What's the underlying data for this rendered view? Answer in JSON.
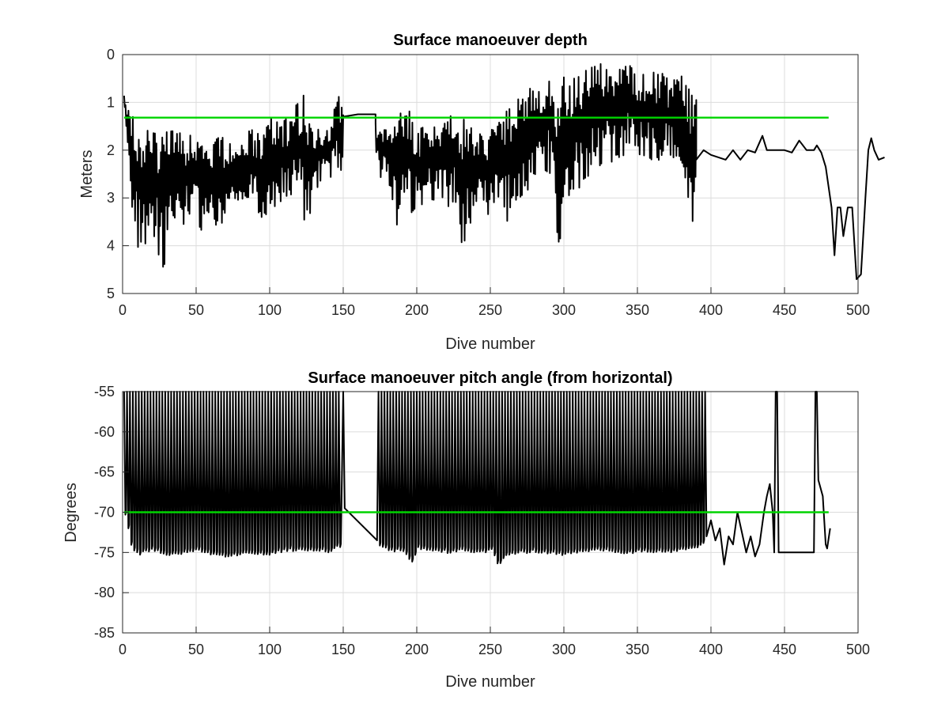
{
  "chart_data": [
    {
      "type": "line",
      "title": "Surface manoeuver depth",
      "xlabel": "Dive number",
      "ylabel": "Meters",
      "xlim": [
        0,
        500
      ],
      "ylim": [
        0,
        5
      ],
      "y_reversed": true,
      "grid": true,
      "xticks": [
        "0",
        "50",
        "100",
        "150",
        "200",
        "250",
        "300",
        "350",
        "400",
        "450",
        "500"
      ],
      "yticks": [
        "0",
        "1",
        "2",
        "3",
        "4",
        "5"
      ],
      "xtick_values": [
        0,
        50,
        100,
        150,
        200,
        250,
        300,
        350,
        400,
        450,
        500
      ],
      "ytick_values": [
        0,
        1,
        2,
        3,
        4,
        5
      ],
      "series": [
        {
          "color": "#000000",
          "segments": [
            {
              "x_start": 1,
              "x_end": 150,
              "envelope_high": [
                [
                  1,
                  0.8
                ],
                [
                  10,
                  1.3
                ],
                [
                  20,
                  1.4
                ],
                [
                  40,
                  1.5
                ],
                [
                  60,
                  1.6
                ],
                [
                  80,
                  1.6
                ],
                [
                  95,
                  1.4
                ],
                [
                  98,
                  0.5
                ],
                [
                  102,
                  1.2
                ],
                [
                  115,
                  1.2
                ],
                [
                  122,
                  0.5
                ],
                [
                  130,
                  1.3
                ],
                [
                  140,
                  1.4
                ],
                [
                  147,
                  0.8
                ],
                [
                  150,
                  0.9
                ]
              ],
              "envelope_low": [
                [
                  1,
                  1.0
                ],
                [
                  5,
                  3.0
                ],
                [
                  8,
                  3.8
                ],
                [
                  12,
                  4.3
                ],
                [
                  20,
                  3.8
                ],
                [
                  28,
                  4.5
                ],
                [
                  35,
                  3.5
                ],
                [
                  45,
                  3.6
                ],
                [
                  55,
                  3.7
                ],
                [
                  65,
                  3.6
                ],
                [
                  75,
                  3.5
                ],
                [
                  85,
                  3.0
                ],
                [
                  97,
                  3.7
                ],
                [
                  105,
                  3.3
                ],
                [
                  115,
                  3.0
                ],
                [
                  125,
                  3.7
                ],
                [
                  130,
                  3.1
                ],
                [
                  140,
                  2.6
                ],
                [
                  150,
                  2.4
                ]
              ]
            },
            {
              "x_start": 150,
              "x_end": 172,
              "line": [
                [
                  150,
                  1.3
                ],
                [
                  160,
                  1.25
                ],
                [
                  172,
                  1.25
                ]
              ]
            },
            {
              "x_start": 172,
              "x_end": 250,
              "envelope_high": [
                [
                  172,
                  1.3
                ],
                [
                  185,
                  1.4
                ],
                [
                  192,
                  0.8
                ],
                [
                  200,
                  1.5
                ],
                [
                  210,
                  1.2
                ],
                [
                  217,
                  1.3
                ],
                [
                  225,
                  0.9
                ],
                [
                  235,
                  1.1
                ],
                [
                  240,
                  1.4
                ],
                [
                  250,
                  1.5
                ]
              ],
              "envelope_low": [
                [
                  172,
                  2.4
                ],
                [
                  180,
                  2.8
                ],
                [
                  187,
                  3.7
                ],
                [
                  195,
                  3.4
                ],
                [
                  205,
                  3.2
                ],
                [
                  215,
                  3.0
                ],
                [
                  225,
                  3.3
                ],
                [
                  232,
                  4.1
                ],
                [
                  240,
                  3.5
                ],
                [
                  250,
                  3.5
                ]
              ]
            },
            {
              "x_start": 250,
              "x_end": 390,
              "envelope_high": [
                [
                  250,
                  1.5
                ],
                [
                  260,
                  1.0
                ],
                [
                  270,
                  0.8
                ],
                [
                  280,
                  0.5
                ],
                [
                  290,
                  0.3
                ],
                [
                  300,
                  0.3
                ],
                [
                  310,
                  0.2
                ],
                [
                  320,
                  0.1
                ],
                [
                  340,
                  0.0
                ],
                [
                  350,
                  0.2
                ],
                [
                  370,
                  0.3
                ],
                [
                  380,
                  0.3
                ],
                [
                  390,
                  0.8
                ]
              ],
              "envelope_low": [
                [
                  250,
                  3.0
                ],
                [
                  260,
                  3.6
                ],
                [
                  270,
                  3.0
                ],
                [
                  280,
                  2.7
                ],
                [
                  290,
                  2.5
                ],
                [
                  296,
                  4.2
                ],
                [
                  305,
                  3.2
                ],
                [
                  315,
                  2.6
                ],
                [
                  330,
                  2.4
                ],
                [
                  345,
                  2.1
                ],
                [
                  360,
                  2.2
                ],
                [
                  380,
                  2.5
                ],
                [
                  389,
                  3.7
                ]
              ]
            },
            {
              "x_start": 390,
              "x_end": 480,
              "line": [
                [
                  390,
                  2.2
                ],
                [
                  395,
                  2.0
                ],
                [
                  400,
                  2.1
                ],
                [
                  410,
                  2.2
                ],
                [
                  415,
                  2.0
                ],
                [
                  420,
                  2.2
                ],
                [
                  425,
                  2.0
                ],
                [
                  430,
                  2.05
                ],
                [
                  435,
                  1.7
                ],
                [
                  438,
                  2.0
                ],
                [
                  445,
                  2.0
                ],
                [
                  450,
                  2.0
                ],
                [
                  455,
                  2.05
                ],
                [
                  460,
                  1.8
                ],
                [
                  465,
                  2.0
                ],
                [
                  470,
                  2.0
                ],
                [
                  472,
                  1.9
                ],
                [
                  475,
                  2.05
                ],
                [
                  478,
                  2.35
                ],
                [
                  482,
                  3.2
                ],
                [
                  484,
                  4.2
                ],
                [
                  486,
                  3.2
                ],
                [
                  488,
                  3.2
                ],
                [
                  490,
                  3.8
                ],
                [
                  493,
                  3.2
                ],
                [
                  496,
                  3.2
                ],
                [
                  499,
                  4.7
                ],
                [
                  502,
                  4.6
                ],
                [
                  505,
                  3.0
                ],
                [
                  507,
                  2.0
                ],
                [
                  509,
                  1.75
                ],
                [
                  511,
                  2.0
                ],
                [
                  514,
                  2.2
                ],
                [
                  518,
                  2.15
                ]
              ]
            }
          ]
        },
        {
          "color": "#00d400",
          "points": [
            [
              1,
              1.32
            ],
            [
              480,
              1.32
            ]
          ]
        }
      ]
    },
    {
      "type": "line",
      "title": "Surface manoeuver pitch angle (from horizontal)",
      "xlabel": "Dive number",
      "ylabel": "Degrees",
      "xlim": [
        0,
        500
      ],
      "ylim": [
        -85,
        -55
      ],
      "grid": true,
      "xticks": [
        "0",
        "50",
        "100",
        "150",
        "200",
        "250",
        "300",
        "350",
        "400",
        "450",
        "500"
      ],
      "yticks": [
        "-55",
        "-60",
        "-65",
        "-70",
        "-75",
        "-80",
        "-85"
      ],
      "xtick_values": [
        0,
        50,
        100,
        150,
        200,
        250,
        300,
        350,
        400,
        450,
        500
      ],
      "ytick_values": [
        -55,
        -60,
        -65,
        -70,
        -75,
        -80,
        -85
      ],
      "series": [
        {
          "color": "#000000",
          "segments": [
            {
              "x_start": 1,
              "x_end": 148,
              "spikes_top": -55,
              "bottoms": [
                [
                  1,
                  -70
                ],
                [
                  5,
                  -74
                ],
                [
                  10,
                  -75
                ],
                [
                  20,
                  -74.5
                ],
                [
                  30,
                  -75
                ],
                [
                  40,
                  -74.8
                ],
                [
                  50,
                  -74.5
                ],
                [
                  60,
                  -75
                ],
                [
                  70,
                  -75.2
                ],
                [
                  80,
                  -75
                ],
                [
                  90,
                  -74.8
                ],
                [
                  100,
                  -75
                ],
                [
                  110,
                  -74.5
                ],
                [
                  120,
                  -74.5
                ],
                [
                  130,
                  -74.6
                ],
                [
                  140,
                  -74.6
                ],
                [
                  146,
                  -74.0
                ]
              ]
            },
            {
              "x_start": 150,
              "x_end": 173,
              "line": [
                [
                  150,
                  -55
                ],
                [
                  151,
                  -69.5
                ],
                [
                  173,
                  -73.5
                ]
              ]
            },
            {
              "x_start": 174,
              "x_end": 395,
              "spikes_top": -55,
              "bottoms": [
                [
                  174,
                  -74
                ],
                [
                  180,
                  -74.5
                ],
                [
                  190,
                  -74.5
                ],
                [
                  196,
                  -76
                ],
                [
                  200,
                  -74.3
                ],
                [
                  210,
                  -74.5
                ],
                [
                  220,
                  -74.7
                ],
                [
                  230,
                  -74.5
                ],
                [
                  240,
                  -74.8
                ],
                [
                  250,
                  -74.5
                ],
                [
                  255,
                  -76.4
                ],
                [
                  260,
                  -75
                ],
                [
                  270,
                  -74.8
                ],
                [
                  280,
                  -74.6
                ],
                [
                  290,
                  -74.8
                ],
                [
                  300,
                  -75
                ],
                [
                  310,
                  -74.8
                ],
                [
                  320,
                  -74.5
                ],
                [
                  330,
                  -74.5
                ],
                [
                  340,
                  -75
                ],
                [
                  350,
                  -74.5
                ],
                [
                  360,
                  -74.6
                ],
                [
                  370,
                  -74.8
                ],
                [
                  380,
                  -74.5
                ],
                [
                  390,
                  -74
                ],
                [
                  395,
                  -73.5
                ]
              ]
            },
            {
              "x_start": 396,
              "x_end": 480,
              "line": [
                [
                  396,
                  -55
                ],
                [
                  397,
                  -73
                ],
                [
                  400,
                  -71
                ],
                [
                  403,
                  -73.5
                ],
                [
                  406,
                  -72
                ],
                [
                  409,
                  -76.5
                ],
                [
                  412,
                  -73
                ],
                [
                  415,
                  -74
                ],
                [
                  418,
                  -70
                ],
                [
                  421,
                  -72.5
                ],
                [
                  424,
                  -75
                ],
                [
                  427,
                  -73
                ],
                [
                  430,
                  -75.5
                ],
                [
                  433,
                  -74
                ],
                [
                  436,
                  -70
                ],
                [
                  438,
                  -68
                ],
                [
                  440,
                  -66.5
                ],
                [
                  442,
                  -70
                ],
                [
                  443,
                  -75
                ],
                [
                  444,
                  -55
                ],
                [
                  445,
                  -55
                ],
                [
                  446,
                  -75
                ],
                [
                  470,
                  -75
                ],
                [
                  471,
                  -55
                ],
                [
                  472,
                  -55
                ],
                [
                  473,
                  -66
                ],
                [
                  476,
                  -68
                ],
                [
                  478,
                  -74
                ],
                [
                  479,
                  -74.5
                ],
                [
                  481,
                  -72
                ]
              ]
            }
          ]
        },
        {
          "color": "#00d400",
          "points": [
            [
              1,
              -70
            ],
            [
              480,
              -70
            ]
          ]
        }
      ]
    }
  ]
}
